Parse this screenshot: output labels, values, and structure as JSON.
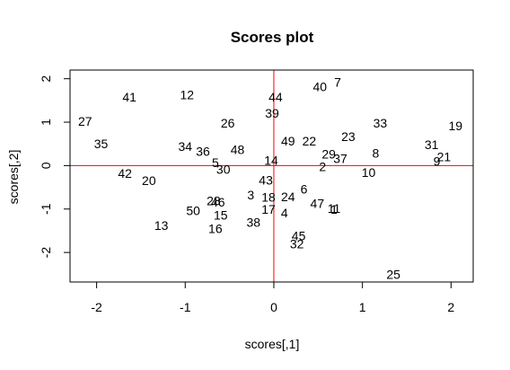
{
  "chart_data": {
    "type": "scatter",
    "title": "Scores plot",
    "xlabel": "scores[,1]",
    "ylabel": "scores[,2]",
    "xlim": [
      -2.3,
      2.25
    ],
    "ylim": [
      -2.68,
      2.2
    ],
    "xticks": [
      -2,
      -1,
      0,
      1,
      2
    ],
    "yticks": [
      -2,
      -1,
      0,
      1,
      2
    ],
    "reference_lines": {
      "x": 0,
      "y": 0,
      "color": "#ff0000"
    },
    "points": [
      {
        "label": "1",
        "x": 0.68,
        "y": -1.01
      },
      {
        "label": "2",
        "x": 0.55,
        "y": -0.02
      },
      {
        "label": "3",
        "x": -0.26,
        "y": -0.67
      },
      {
        "label": "4",
        "x": 0.12,
        "y": -1.09
      },
      {
        "label": "5",
        "x": -0.66,
        "y": 0.07
      },
      {
        "label": "6",
        "x": 0.34,
        "y": -0.54
      },
      {
        "label": "7",
        "x": 0.72,
        "y": 1.92
      },
      {
        "label": "8",
        "x": 1.15,
        "y": 0.29
      },
      {
        "label": "9",
        "x": 1.84,
        "y": 0.1
      },
      {
        "label": "10",
        "x": 1.07,
        "y": -0.16
      },
      {
        "label": "11",
        "x": 0.68,
        "y": -0.98
      },
      {
        "label": "12",
        "x": -0.98,
        "y": 1.63
      },
      {
        "label": "13",
        "x": -1.27,
        "y": -1.38
      },
      {
        "label": "14",
        "x": -0.03,
        "y": 0.12
      },
      {
        "label": "15",
        "x": -0.6,
        "y": -1.14
      },
      {
        "label": "16",
        "x": -0.66,
        "y": -1.45
      },
      {
        "label": "17",
        "x": -0.06,
        "y": -1.01
      },
      {
        "label": "18",
        "x": -0.06,
        "y": -0.73
      },
      {
        "label": "19",
        "x": 2.05,
        "y": 0.92
      },
      {
        "label": "20",
        "x": -1.41,
        "y": -0.34
      },
      {
        "label": "21",
        "x": 1.92,
        "y": 0.2
      },
      {
        "label": "22",
        "x": 0.4,
        "y": 0.57
      },
      {
        "label": "23",
        "x": 0.84,
        "y": 0.67
      },
      {
        "label": "24",
        "x": 0.16,
        "y": -0.72
      },
      {
        "label": "25",
        "x": 1.35,
        "y": -2.5
      },
      {
        "label": "26",
        "x": -0.52,
        "y": 0.98
      },
      {
        "label": "27",
        "x": -2.13,
        "y": 1.02
      },
      {
        "label": "28",
        "x": -0.68,
        "y": -0.81
      },
      {
        "label": "29",
        "x": 0.62,
        "y": 0.27
      },
      {
        "label": "30",
        "x": -0.57,
        "y": -0.09
      },
      {
        "label": "31",
        "x": 1.78,
        "y": 0.48
      },
      {
        "label": "32",
        "x": 0.26,
        "y": -1.8
      },
      {
        "label": "33",
        "x": 1.2,
        "y": 0.98
      },
      {
        "label": "34",
        "x": -1.0,
        "y": 0.44
      },
      {
        "label": "35",
        "x": -1.95,
        "y": 0.5
      },
      {
        "label": "36",
        "x": -0.8,
        "y": 0.33
      },
      {
        "label": "37",
        "x": 0.75,
        "y": 0.16
      },
      {
        "label": "38",
        "x": -0.23,
        "y": -1.3
      },
      {
        "label": "39",
        "x": -0.02,
        "y": 1.21
      },
      {
        "label": "40",
        "x": 0.52,
        "y": 1.82
      },
      {
        "label": "41",
        "x": -1.63,
        "y": 1.58
      },
      {
        "label": "42",
        "x": -1.68,
        "y": -0.18
      },
      {
        "label": "43",
        "x": -0.09,
        "y": -0.33
      },
      {
        "label": "44",
        "x": 0.02,
        "y": 1.58
      },
      {
        "label": "45",
        "x": 0.28,
        "y": -1.62
      },
      {
        "label": "46",
        "x": -0.63,
        "y": -0.84
      },
      {
        "label": "47",
        "x": 0.49,
        "y": -0.87
      },
      {
        "label": "48",
        "x": -0.41,
        "y": 0.37
      },
      {
        "label": "49",
        "x": 0.16,
        "y": 0.57
      },
      {
        "label": "50",
        "x": -0.91,
        "y": -1.04
      }
    ]
  }
}
